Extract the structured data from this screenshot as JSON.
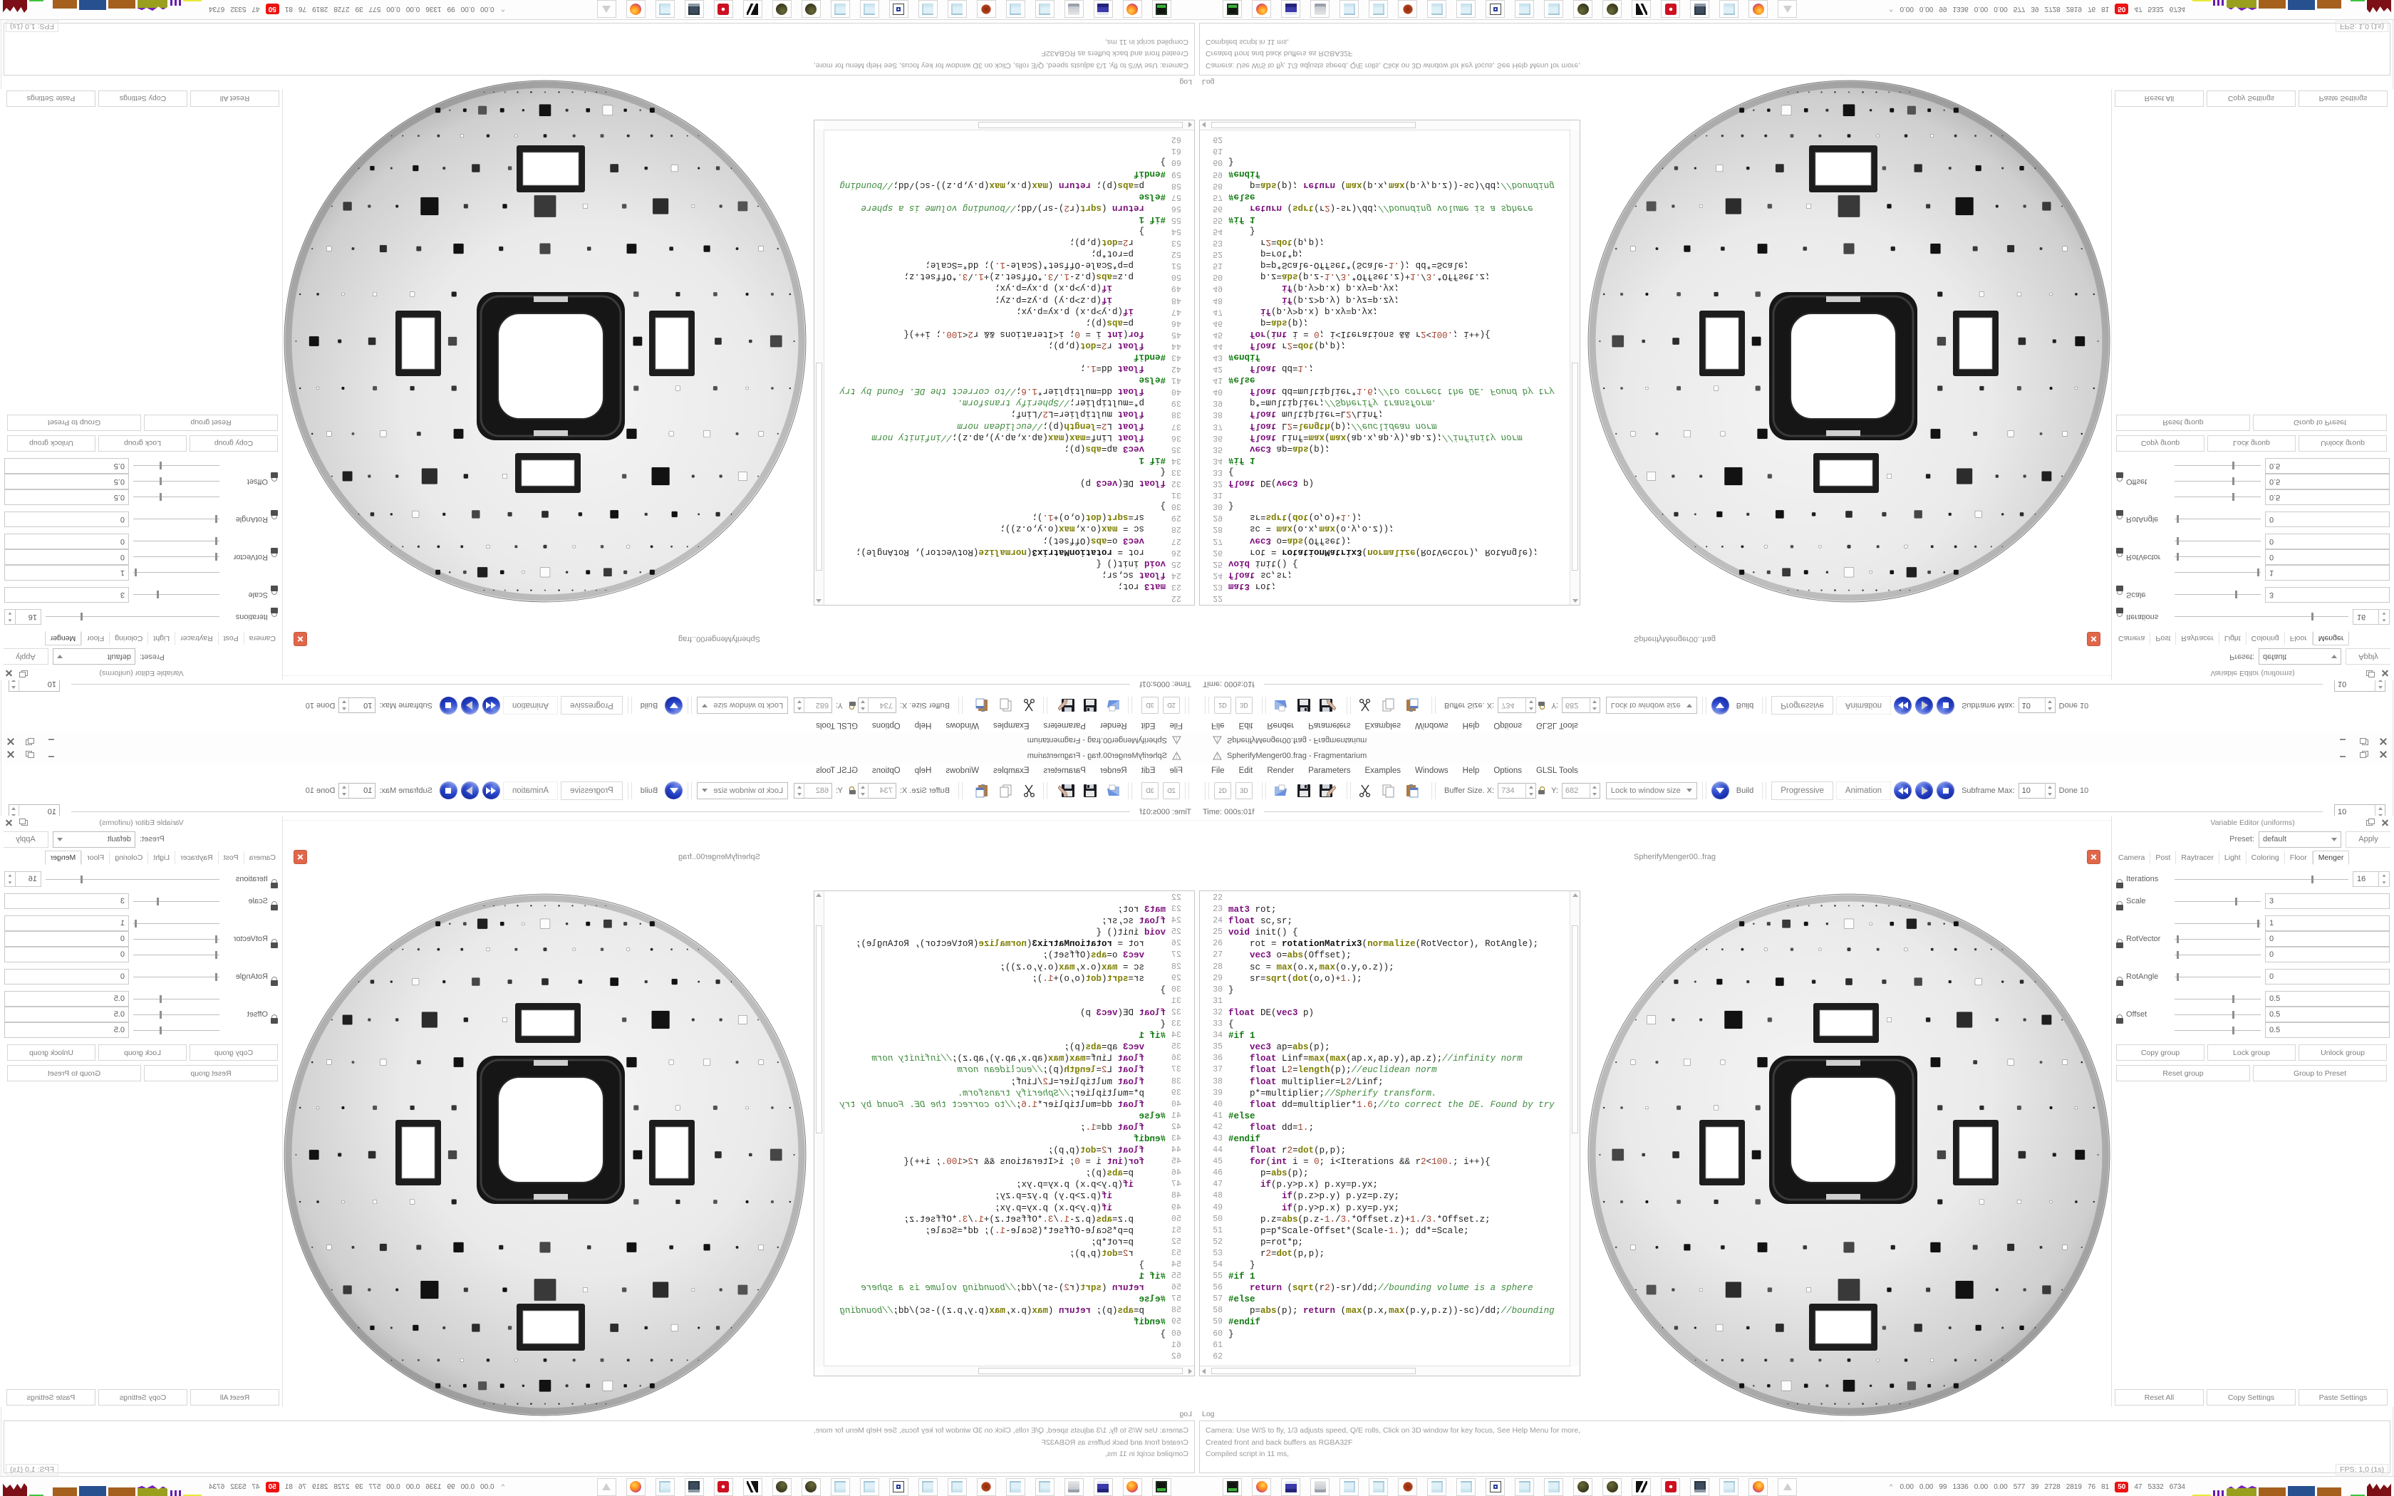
{
  "window": {
    "title": "SpherifyMenger00.frag - Fragmentarium"
  },
  "menu": [
    "File",
    "Edit",
    "Render",
    "Parameters",
    "Examples",
    "Windows",
    "Help",
    "Options",
    "GLSL Tools"
  ],
  "toolbar": {
    "view_buttons": [
      "2D",
      "3D"
    ],
    "file_icons": [
      "open-icon",
      "save-icon",
      "save-as-icon"
    ],
    "edit_icons": [
      "cut-icon",
      "copy-icon",
      "paste-icon"
    ],
    "buffer_size_label": "Buffer Size. X:",
    "buffer_x": "734",
    "y_label": "Y:",
    "buffer_y": "682",
    "lock_dropdown_value": "Lock to window size",
    "build_label": "Build",
    "progressive_label": "Progressive",
    "animation_label": "Animation",
    "subframe_label": "Subframe Max:",
    "subframe_value": "10",
    "done_label": "Done 10"
  },
  "timebar": {
    "time_label": "Time: 000s:01f",
    "right_value": "10"
  },
  "editor": {
    "first_line": 22,
    "code": [
      "",
      "mat3 rot;",
      "float sc,sr;",
      "void init() {",
      "    rot = rotationMatrix3(normalize(RotVector), RotAngle);",
      "    vec3 o=abs(Offset);",
      "    sc = max(o.x,max(o.y,o.z));",
      "    sr=sqrt(dot(o,o)+1.);",
      "}",
      "",
      "float DE(vec3 p)",
      "{",
      "#if 1",
      "    vec3 ap=abs(p);",
      "    float Linf=max(max(ap.x,ap.y),ap.z);//infinity norm",
      "    float L2=length(p);//euclidean norm",
      "    float multiplier=L2/Linf;",
      "    p*=multiplier;//Spherify transform.",
      "    float dd=multiplier*1.6;//to correct the DE. Found by try",
      "#else",
      "    float dd=1.;",
      "#endif",
      "    float r2=dot(p,p);",
      "    for(int i = 0; i<Iterations && r2<100.; i++){",
      "      p=abs(p);",
      "      if(p.y>p.x) p.xy=p.yx;",
      "          if(p.z>p.y) p.yz=p.zy;",
      "          if(p.y>p.x) p.xy=p.yx;",
      "      p.z=abs(p.z-1./3.*Offset.z)+1./3.*Offset.z;",
      "      p=p*Scale-Offset*(Scale-1.); dd*=Scale;",
      "      p=rot*p;",
      "      r2=dot(p,p);",
      "    }",
      "#if 1",
      "    return (sqrt(r2)-sr)/dd;//bounding volume is a sphere",
      "#else",
      "    p=abs(p); return (max(p.x,max(p.y,p.z))-sc)/dd;//bounding",
      "#endif",
      "}",
      "",
      ""
    ]
  },
  "render_view": {
    "tab_label": "SpherifyMenger00..frag",
    "ball": {
      "base_light": "#f4f4f4",
      "base_dark": "#828282",
      "hole_dark": "#161616"
    }
  },
  "variable_editor": {
    "header": "Variable Editor (uniforms)",
    "preset_label": "Preset:",
    "preset_value": "default",
    "apply_label": "Apply",
    "tabs": [
      "Camera",
      "Post",
      "Raytracer",
      "Light",
      "Coloring",
      "Floor",
      "Menger"
    ],
    "active_tab": "Menger",
    "params": [
      {
        "label": "Iterations",
        "small": true,
        "rows": [
          {
            "value": "16",
            "thumb": 79
          }
        ]
      },
      {
        "label": "Scale",
        "small": false,
        "rows": [
          {
            "value": "3",
            "thumb": 71
          }
        ]
      },
      {
        "label": "RotVector",
        "small": false,
        "rows": [
          {
            "value": "1",
            "thumb": 97
          },
          {
            "value": "0",
            "thumb": 3
          },
          {
            "value": "0",
            "thumb": 3
          }
        ]
      },
      {
        "label": "RotAngle",
        "small": false,
        "rows": [
          {
            "value": "0",
            "thumb": 3
          }
        ]
      },
      {
        "label": "Offset",
        "small": false,
        "rows": [
          {
            "value": "0.5",
            "thumb": 68
          },
          {
            "value": "0.5",
            "thumb": 68
          },
          {
            "value": "0.5",
            "thumb": 68
          }
        ]
      }
    ],
    "group_buttons_row1": [
      "Copy group",
      "Lock group",
      "Unlock group"
    ],
    "group_buttons_row2": [
      "Reset group",
      "Group to Preset"
    ],
    "bottom_buttons": [
      "Reset All",
      "Copy Settings",
      "Paste Settings"
    ]
  },
  "log": {
    "header": "Log",
    "lines": [
      "Camera: Use W/S to fly, 1/3 adjusts speed, Q/E rolls, Click on 3D window for key focus, See Help Menu for more,",
      "Created front and back buffers as RGBA32F",
      "Compiled script in 11 ms,"
    ]
  },
  "status": {
    "fps": "FPS: 1,0 (1s)"
  },
  "taskbar": {
    "expander": "^",
    "icons": [
      "hw-monitor",
      "firefox",
      "floppy-64",
      "printer-doc",
      "notepad",
      "notepad",
      "paint-splat",
      "notepad",
      "notepad",
      "ps-doc",
      "notepad",
      "notepad",
      "moss-sphere",
      "moss-sphere-2",
      "bw-art",
      "red-badge",
      "monitor-user",
      "notepad",
      "firefox-2",
      "fragmentarium-prism"
    ],
    "stats": [
      "0.00",
      "0.00",
      "99",
      "1336",
      "0.00",
      "0.00",
      "577",
      "39",
      "2728",
      "2819",
      "76",
      "81",
      "50",
      "47",
      "5332",
      "6734"
    ],
    "highlight_stat_index": 12,
    "graphs": [
      "yellow-line",
      "purple-ticks",
      "olive-histogram",
      "brown-bar",
      "blue-bar",
      "brown-bar-2",
      "green-line",
      "dark-red-histogram"
    ],
    "stat_highlight_color": "#ee1111"
  },
  "colors": {
    "build_blue": "#2743c8",
    "tab_close_orange": "#e0664a"
  }
}
